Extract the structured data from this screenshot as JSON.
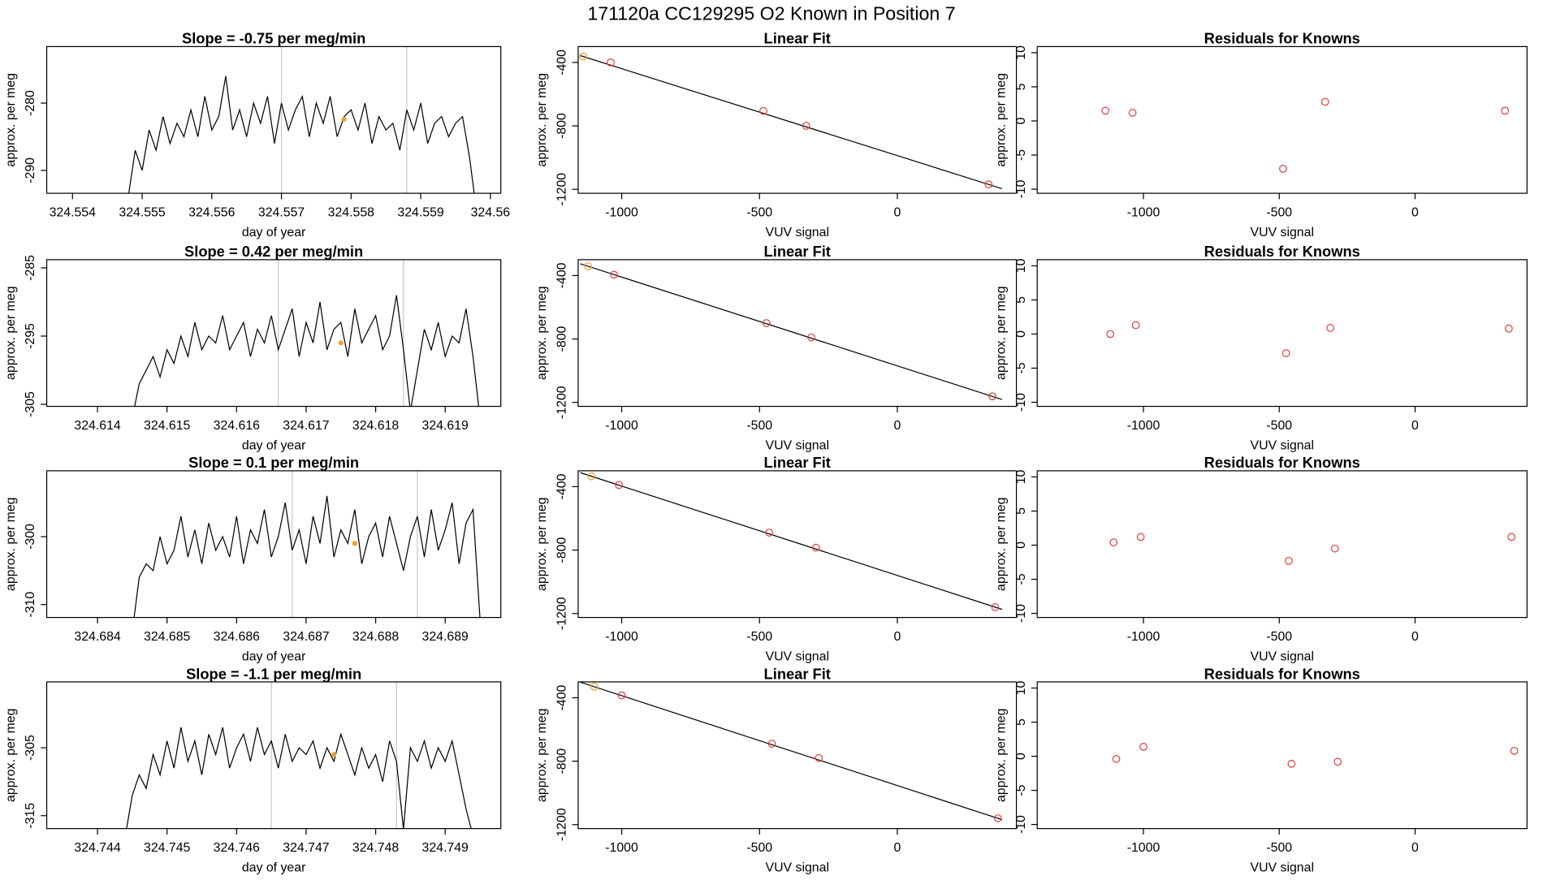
{
  "title": "171120a     CC129295   O2 Known in Position  7",
  "chart_data": [
    {
      "type": "line",
      "title": "Slope =  -0.75  per meg/min",
      "x_label": "day of year",
      "y_label": "approx. per meg",
      "color": "#000000",
      "x": [
        324.5548,
        324.5549,
        324.555,
        324.5551,
        324.5552,
        324.5553,
        324.5554,
        324.5555,
        324.5556,
        324.5557,
        324.5558,
        324.5559,
        324.556,
        324.5561,
        324.5562,
        324.5563,
        324.5564,
        324.5565,
        324.5566,
        324.5567,
        324.5568,
        324.5569,
        324.557,
        324.5571,
        324.5572,
        324.5573,
        324.5574,
        324.5575,
        324.5576,
        324.5577,
        324.5578,
        324.5579,
        324.558,
        324.5581,
        324.5582,
        324.5583,
        324.5584,
        324.5585,
        324.5586,
        324.5587,
        324.5588,
        324.5589,
        324.559,
        324.5591,
        324.5592,
        324.5593,
        324.5594,
        324.5595,
        324.5596,
        324.5597,
        324.5598
      ],
      "values": [
        -294,
        -287,
        -290,
        -284,
        -287,
        -282,
        -286,
        -283,
        -285,
        -281,
        -285,
        -279,
        -284,
        -282,
        -276,
        -284,
        -281,
        -285,
        -280,
        -283,
        -279,
        -286,
        -280,
        -284,
        -281,
        -279,
        -285,
        -280,
        -283,
        -279,
        -285,
        -282,
        -281,
        -284,
        -280,
        -286,
        -282,
        -284,
        -283,
        -287,
        -281,
        -284,
        -280,
        -286,
        -283,
        -282,
        -285,
        -283,
        -282,
        -288,
        -296
      ],
      "highlight": {
        "x": 324.5579,
        "y": -282.4,
        "color": "#f0a030"
      },
      "vlines": [
        324.557,
        324.5588
      ],
      "vline_color": "#c8c8c8",
      "xlim": [
        324.55363,
        324.56015
      ],
      "ylim": [
        -293.4,
        -271.6
      ],
      "xticks": [
        324.554,
        324.555,
        324.556,
        324.557,
        324.558,
        324.559,
        324.56
      ],
      "yticks": [
        -280,
        -290
      ]
    },
    {
      "type": "scatter",
      "title": "Linear Fit",
      "x_label": "VUV signal",
      "y_label": "approx. per meg",
      "x": [
        -1140,
        -1040,
        -486,
        -331,
        331
      ],
      "values": [
        -362,
        -400,
        -706,
        -800,
        -1169
      ],
      "point_colors": [
        "#f0a030",
        "#e04040",
        "#e04040",
        "#e04040",
        "#e04040"
      ],
      "fit": {
        "x": [
          -1150,
          380
        ],
        "y": [
          -357,
          -1196
        ],
        "color": "#000000"
      },
      "xlim": [
        -1158,
        432
      ],
      "ylim": [
        -1225,
        -300
      ],
      "xticks": [
        -1000,
        -500,
        0
      ],
      "yticks": [
        -400,
        -800,
        -1200
      ]
    },
    {
      "type": "scatter",
      "title": "Residuals for Knowns",
      "x_label": "VUV signal",
      "y_label": "approx. per meg",
      "color": "#e04040",
      "x": [
        -1140,
        -1040,
        -486,
        -331,
        331
      ],
      "values": [
        1.5,
        1.2,
        -7,
        2.8,
        1.5
      ],
      "xlim": [
        -1391,
        412
      ],
      "ylim": [
        -10.6,
        10.9
      ],
      "xticks": [
        -1000,
        -500,
        0
      ],
      "yticks": [
        10,
        5,
        0,
        -5,
        -10
      ]
    },
    {
      "type": "line",
      "title": "Slope =  0.42  per meg/min",
      "x_label": "day of year",
      "y_label": "approx. per meg",
      "color": "#000000",
      "x": [
        324.6145,
        324.6146,
        324.6147,
        324.6148,
        324.6149,
        324.615,
        324.6151,
        324.6152,
        324.6153,
        324.6154,
        324.6155,
        324.6156,
        324.6157,
        324.6158,
        324.6159,
        324.616,
        324.6161,
        324.6162,
        324.6163,
        324.6164,
        324.6165,
        324.6166,
        324.6167,
        324.6168,
        324.6169,
        324.617,
        324.6171,
        324.6172,
        324.6173,
        324.6174,
        324.6175,
        324.6176,
        324.6177,
        324.6178,
        324.6179,
        324.618,
        324.6181,
        324.6182,
        324.6183,
        324.6184,
        324.6185,
        324.6186,
        324.6187,
        324.6188,
        324.6189,
        324.619,
        324.6191,
        324.6192,
        324.6193,
        324.6194,
        324.6195
      ],
      "values": [
        -307,
        -302,
        -300,
        -298,
        -301,
        -297,
        -299,
        -295,
        -298,
        -293,
        -297,
        -295,
        -296,
        -292,
        -297,
        -295,
        -293,
        -298,
        -294,
        -296,
        -292,
        -297,
        -294,
        -291,
        -298,
        -293,
        -296,
        -290,
        -297,
        -294,
        -293,
        -298,
        -291,
        -296,
        -294,
        -292,
        -297,
        -295,
        -289,
        -297,
        -306,
        -300,
        -294,
        -297,
        -293,
        -298,
        -295,
        -296,
        -291,
        -298,
        -307
      ],
      "highlight": {
        "x": 324.6175,
        "y": -296,
        "color": "#f0a030"
      },
      "vlines": [
        324.6166,
        324.6184
      ],
      "vline_color": "#c8c8c8",
      "xlim": [
        324.61327,
        324.6198
      ],
      "ylim": [
        -305.3,
        -283.8
      ],
      "xticks": [
        324.614,
        324.615,
        324.616,
        324.617,
        324.618,
        324.619
      ],
      "yticks": [
        -285,
        -295,
        -305
      ]
    },
    {
      "type": "scatter",
      "title": "Linear Fit",
      "x_label": "VUV signal",
      "y_label": "approx. per meg",
      "x": [
        -1122,
        -1028,
        -475,
        -312,
        345
      ],
      "values": [
        -342,
        -395,
        -700,
        -790,
        -1162
      ],
      "point_colors": [
        "#f0a030",
        "#e04040",
        "#e04040",
        "#e04040",
        "#e04040"
      ],
      "fit": {
        "x": [
          -1150,
          380
        ],
        "y": [
          -326,
          -1182
        ],
        "color": "#000000"
      },
      "xlim": [
        -1158,
        432
      ],
      "ylim": [
        -1225,
        -300
      ],
      "xticks": [
        -1000,
        -500,
        0
      ],
      "yticks": [
        -400,
        -800,
        -1200
      ]
    },
    {
      "type": "scatter",
      "title": "Residuals for Knowns",
      "x_label": "VUV signal",
      "y_label": "approx. per meg",
      "color": "#e04040",
      "x": [
        -1122,
        -1028,
        -475,
        -312,
        345
      ],
      "values": [
        0,
        1.3,
        -2.8,
        0.9,
        0.8
      ],
      "xlim": [
        -1391,
        412
      ],
      "ylim": [
        -10.6,
        10.9
      ],
      "xticks": [
        -1000,
        -500,
        0
      ],
      "yticks": [
        10,
        5,
        0,
        -5,
        -10
      ]
    },
    {
      "type": "line",
      "title": "Slope =  0.1  per meg/min",
      "x_label": "day of year",
      "y_label": "approx. per meg",
      "color": "#000000",
      "x": [
        324.6845,
        324.6846,
        324.6847,
        324.6848,
        324.6849,
        324.685,
        324.6851,
        324.6852,
        324.6853,
        324.6854,
        324.6855,
        324.6856,
        324.6857,
        324.6858,
        324.6859,
        324.686,
        324.6861,
        324.6862,
        324.6863,
        324.6864,
        324.6865,
        324.6866,
        324.6867,
        324.6868,
        324.6869,
        324.687,
        324.6871,
        324.6872,
        324.6873,
        324.6874,
        324.6875,
        324.6876,
        324.6877,
        324.6878,
        324.6879,
        324.688,
        324.6881,
        324.6882,
        324.6883,
        324.6884,
        324.6885,
        324.6886,
        324.6887,
        324.6888,
        324.6889,
        324.689,
        324.6891,
        324.6892,
        324.6893,
        324.6894,
        324.6895
      ],
      "values": [
        -314,
        -306,
        -304,
        -305,
        -300,
        -304,
        -302,
        -297,
        -303,
        -299,
        -304,
        -298,
        -302,
        -300,
        -303,
        -297,
        -304,
        -299,
        -301,
        -296,
        -303,
        -300,
        -295,
        -302,
        -299,
        -304,
        -297,
        -301,
        -294,
        -303,
        -299,
        -301,
        -296,
        -304,
        -300,
        -298,
        -303,
        -297,
        -301,
        -305,
        -300,
        -297,
        -303,
        -296,
        -302,
        -299,
        -295,
        -304,
        -298,
        -296,
        -312
      ],
      "highlight": {
        "x": 324.6877,
        "y": -301,
        "color": "#f0a030"
      },
      "vlines": [
        324.6868,
        324.6886
      ],
      "vline_color": "#c8c8c8",
      "xlim": [
        324.68327,
        324.6898
      ],
      "ylim": [
        -311.9,
        -290.3
      ],
      "xticks": [
        324.684,
        324.685,
        324.686,
        324.687,
        324.688,
        324.689
      ],
      "yticks": [
        -300,
        -310
      ]
    },
    {
      "type": "scatter",
      "title": "Linear Fit",
      "x_label": "VUV signal",
      "y_label": "approx. per meg",
      "x": [
        -1110,
        -1010,
        -465,
        -295,
        355
      ],
      "values": [
        -335,
        -390,
        -690,
        -785,
        -1160
      ],
      "point_colors": [
        "#f0a030",
        "#e04040",
        "#e04040",
        "#e04040",
        "#e04040"
      ],
      "fit": {
        "x": [
          -1150,
          380
        ],
        "y": [
          -312,
          -1174
        ],
        "color": "#000000"
      },
      "xlim": [
        -1158,
        432
      ],
      "ylim": [
        -1225,
        -300
      ],
      "xticks": [
        -1000,
        -500,
        0
      ],
      "yticks": [
        -400,
        -800,
        -1200
      ]
    },
    {
      "type": "scatter",
      "title": "Residuals for Knowns",
      "x_label": "VUV signal",
      "y_label": "approx. per meg",
      "color": "#e04040",
      "x": [
        -1110,
        -1010,
        -465,
        -295,
        355
      ],
      "values": [
        0.4,
        1.2,
        -2.3,
        -0.5,
        1.2
      ],
      "xlim": [
        -1391,
        412
      ],
      "ylim": [
        -10.6,
        10.9
      ],
      "xticks": [
        -1000,
        -500,
        0
      ],
      "yticks": [
        10,
        5,
        0,
        -5,
        -10
      ]
    },
    {
      "type": "line",
      "title": "Slope =  -1.1  per meg/min",
      "x_label": "day of year",
      "y_label": "approx. per meg",
      "color": "#000000",
      "x": [
        324.7444,
        324.7445,
        324.7446,
        324.7447,
        324.7448,
        324.7449,
        324.745,
        324.7451,
        324.7452,
        324.7453,
        324.7454,
        324.7455,
        324.7456,
        324.7457,
        324.7458,
        324.7459,
        324.746,
        324.7461,
        324.7462,
        324.7463,
        324.7464,
        324.7465,
        324.7466,
        324.7467,
        324.7468,
        324.7469,
        324.747,
        324.7471,
        324.7472,
        324.7473,
        324.7474,
        324.7475,
        324.7476,
        324.7477,
        324.7478,
        324.7479,
        324.748,
        324.7481,
        324.7482,
        324.7483,
        324.7484,
        324.7485,
        324.7486,
        324.7487,
        324.7488,
        324.7489,
        324.749,
        324.7491,
        324.7492,
        324.7493,
        324.7494
      ],
      "values": [
        -318,
        -312,
        -309,
        -311,
        -306,
        -309,
        -304,
        -308,
        -302,
        -307,
        -304,
        -309,
        -303,
        -306,
        -302,
        -308,
        -305,
        -303,
        -307,
        -302,
        -306,
        -304,
        -308,
        -303,
        -307,
        -305,
        -306,
        -304,
        -308,
        -305,
        -307,
        -303,
        -306,
        -309,
        -305,
        -308,
        -306,
        -310,
        -304,
        -307,
        -317,
        -305,
        -307,
        -304,
        -308,
        -305,
        -307,
        -304,
        -309,
        -314,
        -318
      ],
      "highlight": {
        "x": 324.7474,
        "y": -306,
        "color": "#f0a030"
      },
      "vlines": [
        324.7465,
        324.7483
      ],
      "vline_color": "#c8c8c8",
      "xlim": [
        324.74327,
        324.7498
      ],
      "ylim": [
        -316.9,
        -295.3
      ],
      "xticks": [
        324.744,
        324.745,
        324.746,
        324.747,
        324.748,
        324.749
      ],
      "yticks": [
        -305,
        -315
      ]
    },
    {
      "type": "scatter",
      "title": "Linear Fit",
      "x_label": "VUV signal",
      "y_label": "approx. per meg",
      "x": [
        -1100,
        -1000,
        -455,
        -285,
        365
      ],
      "values": [
        -330,
        -385,
        -690,
        -780,
        -1160
      ],
      "point_colors": [
        "#f0a030",
        "#e04040",
        "#e04040",
        "#e04040",
        "#e04040"
      ],
      "fit": {
        "x": [
          -1150,
          380
        ],
        "y": [
          -302,
          -1169
        ],
        "color": "#000000"
      },
      "xlim": [
        -1158,
        432
      ],
      "ylim": [
        -1225,
        -300
      ],
      "xticks": [
        -1000,
        -500,
        0
      ],
      "yticks": [
        -400,
        -800,
        -1200
      ]
    },
    {
      "type": "scatter",
      "title": "Residuals for Knowns",
      "x_label": "VUV signal",
      "y_label": "approx. per meg",
      "color": "#e04040",
      "x": [
        -1100,
        -1000,
        -455,
        -285,
        365
      ],
      "values": [
        -0.4,
        1.4,
        -1.1,
        -0.8,
        0.8
      ],
      "xlim": [
        -1391,
        412
      ],
      "ylim": [
        -10.6,
        10.9
      ],
      "xticks": [
        -1000,
        -500,
        0
      ],
      "yticks": [
        10,
        5,
        0,
        -5,
        -10
      ]
    }
  ]
}
